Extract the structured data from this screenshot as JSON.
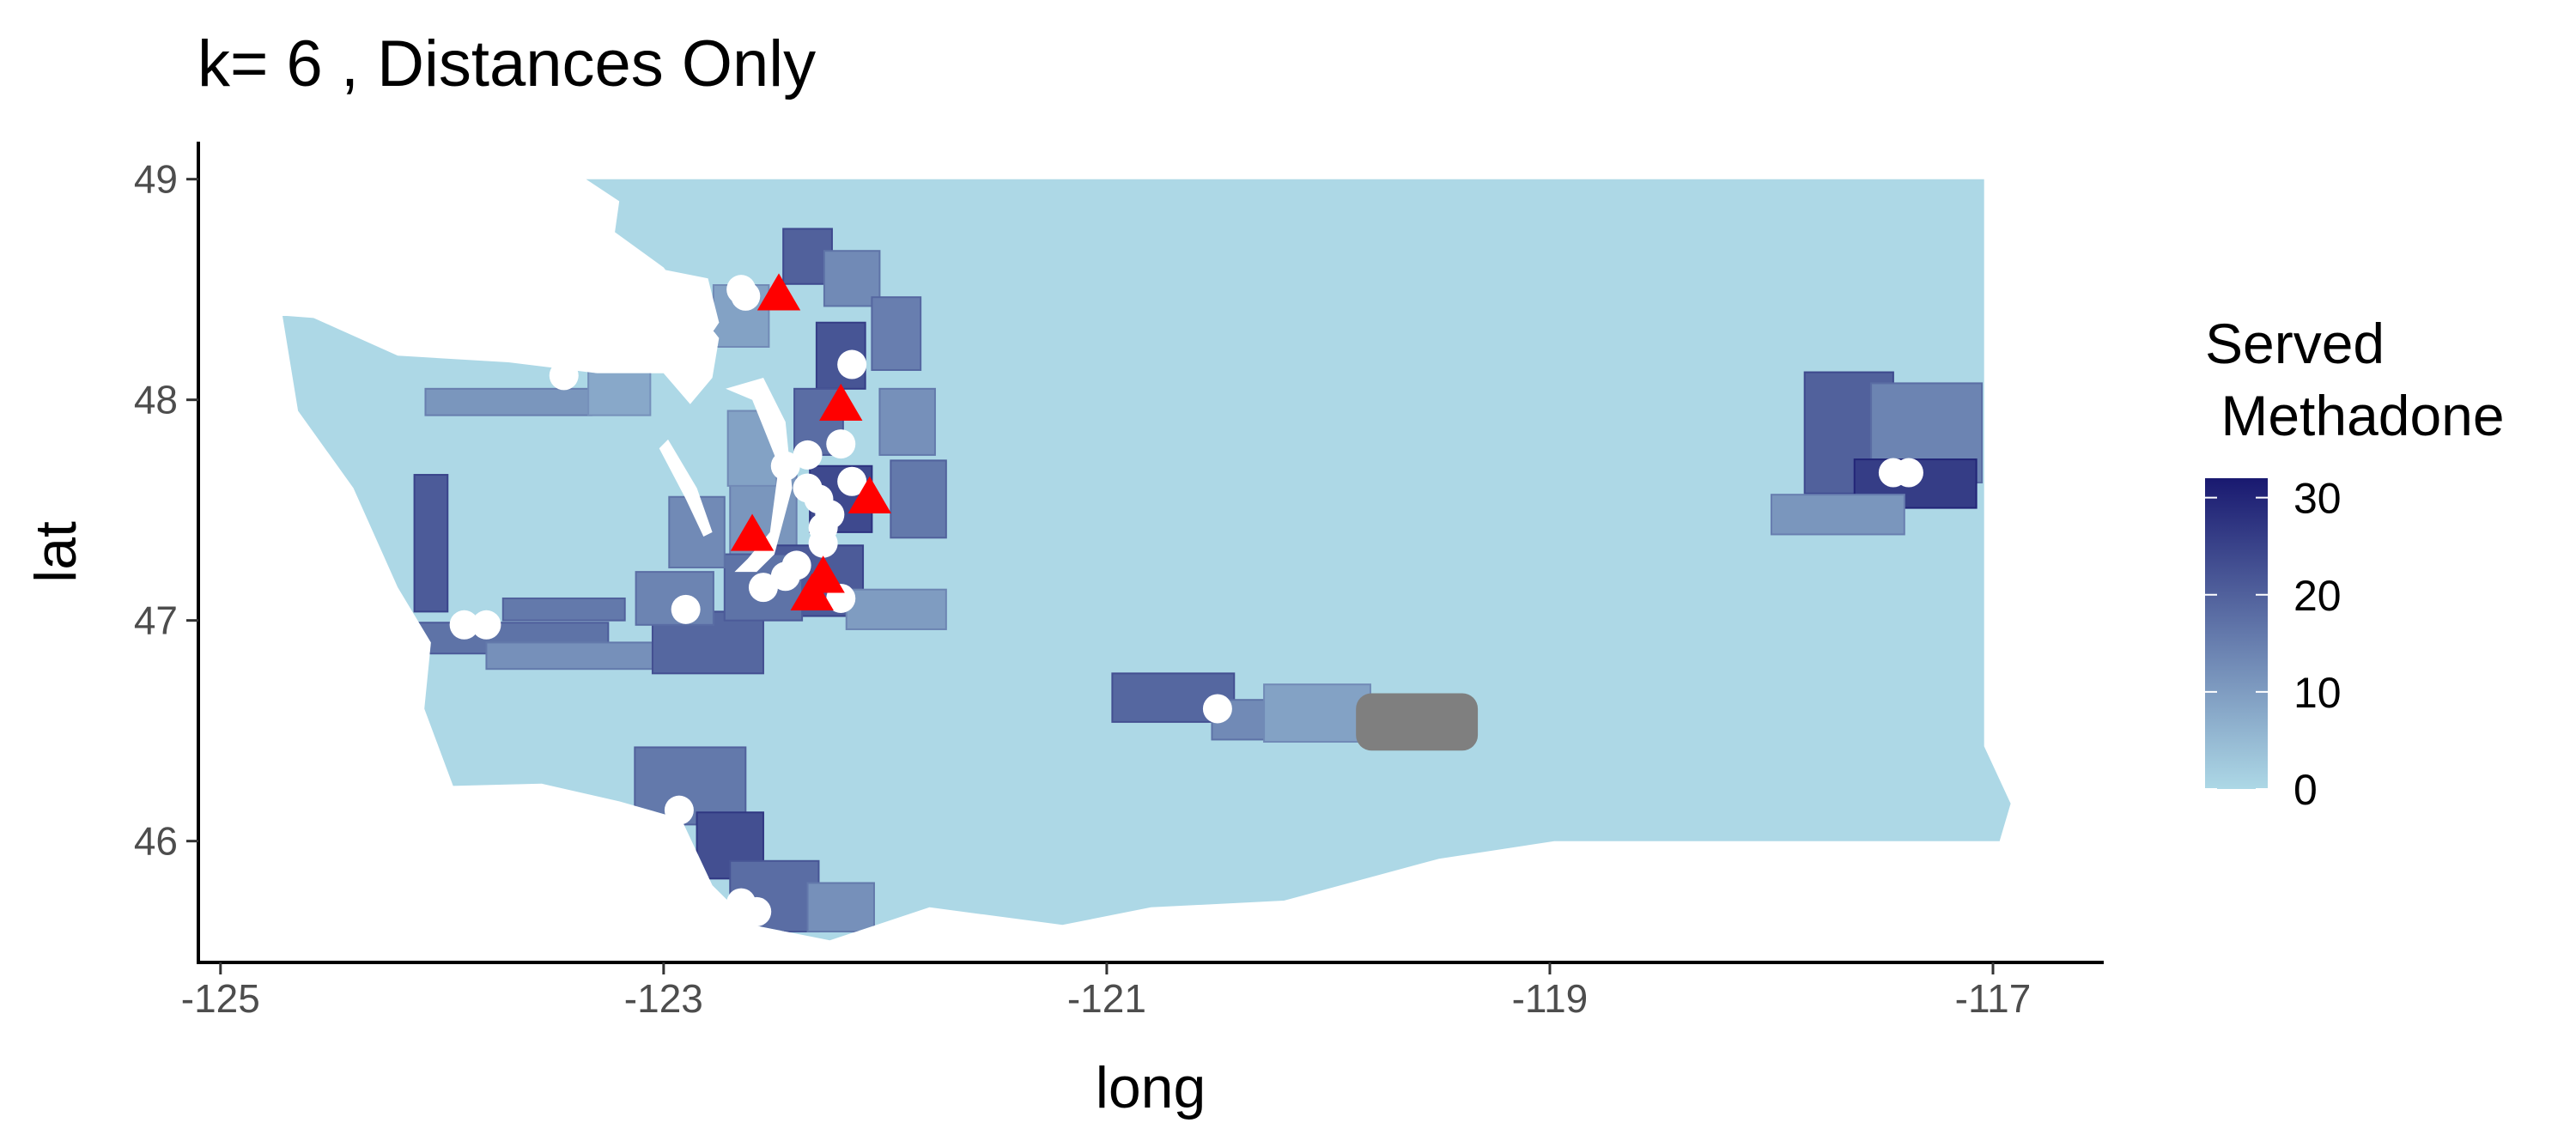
{
  "chart_data": {
    "type": "map",
    "title": "k= 6 , Distances Only",
    "xlabel": "long",
    "ylabel": "lat",
    "xlim": [
      -125.1,
      -116.5
    ],
    "ylim": [
      45.45,
      49.17
    ],
    "x_ticks": [
      -125,
      -123,
      -121,
      -119,
      -117
    ],
    "y_ticks": [
      46,
      47,
      48,
      49
    ],
    "x_tick_labels": [
      "-125",
      "-123",
      "-121",
      "-119",
      "-117"
    ],
    "y_tick_labels": [
      "46",
      "47",
      "48",
      "49"
    ],
    "legend": {
      "title_line1": "Served",
      "title_line2": " Methadone",
      "min": 0,
      "max": 32,
      "breaks": [
        0,
        10,
        20,
        30
      ],
      "break_labels": [
        "0",
        "10",
        "20",
        "30"
      ],
      "low_color": "#add8e6",
      "high_color": "#191970",
      "placement": "right"
    },
    "colors": {
      "base_fill": "#add8e6",
      "na_fill": "#7f7f7f",
      "facility_marker": "#ff0000",
      "client_marker": "#ffffff"
    },
    "shaded_regions": [
      {
        "lon": -124.05,
        "lat": 47.35,
        "w": 0.15,
        "h": 0.62,
        "value": 21
      },
      {
        "lon": -123.7,
        "lat": 46.92,
        "w": 0.9,
        "h": 0.14,
        "value": 17
      },
      {
        "lon": -123.2,
        "lat": 46.84,
        "w": 1.2,
        "h": 0.12,
        "value": 12
      },
      {
        "lon": -122.8,
        "lat": 46.9,
        "w": 0.5,
        "h": 0.28,
        "value": 19
      },
      {
        "lon": -122.95,
        "lat": 47.1,
        "w": 0.35,
        "h": 0.24,
        "value": 14
      },
      {
        "lon": -123.45,
        "lat": 47.05,
        "w": 0.55,
        "h": 0.1,
        "value": 16
      },
      {
        "lon": -123.7,
        "lat": 47.99,
        "w": 0.75,
        "h": 0.12,
        "value": 11
      },
      {
        "lon": -123.2,
        "lat": 48.03,
        "w": 0.28,
        "h": 0.2,
        "value": 8
      },
      {
        "lon": -122.65,
        "lat": 48.38,
        "w": 0.25,
        "h": 0.28,
        "value": 9
      },
      {
        "lon": -122.35,
        "lat": 48.65,
        "w": 0.22,
        "h": 0.25,
        "value": 20
      },
      {
        "lon": -122.15,
        "lat": 48.55,
        "w": 0.25,
        "h": 0.25,
        "value": 13
      },
      {
        "lon": -122.2,
        "lat": 48.2,
        "w": 0.22,
        "h": 0.3,
        "value": 22
      },
      {
        "lon": -121.95,
        "lat": 48.3,
        "w": 0.22,
        "h": 0.33,
        "value": 15
      },
      {
        "lon": -122.3,
        "lat": 47.9,
        "w": 0.22,
        "h": 0.3,
        "value": 18
      },
      {
        "lon": -121.9,
        "lat": 47.9,
        "w": 0.25,
        "h": 0.3,
        "value": 12
      },
      {
        "lon": -122.2,
        "lat": 47.55,
        "w": 0.28,
        "h": 0.3,
        "value": 24
      },
      {
        "lon": -121.85,
        "lat": 47.55,
        "w": 0.25,
        "h": 0.35,
        "value": 16
      },
      {
        "lon": -122.55,
        "lat": 47.48,
        "w": 0.3,
        "h": 0.42,
        "value": 11
      },
      {
        "lon": -122.3,
        "lat": 47.18,
        "w": 0.4,
        "h": 0.32,
        "value": 21
      },
      {
        "lon": -122.55,
        "lat": 47.15,
        "w": 0.35,
        "h": 0.3,
        "value": 17
      },
      {
        "lon": -121.95,
        "lat": 47.05,
        "w": 0.45,
        "h": 0.18,
        "value": 10
      },
      {
        "lon": -122.85,
        "lat": 47.4,
        "w": 0.25,
        "h": 0.32,
        "value": 13
      },
      {
        "lon": -122.6,
        "lat": 47.78,
        "w": 0.22,
        "h": 0.34,
        "value": 9
      },
      {
        "lon": -122.88,
        "lat": 46.25,
        "w": 0.5,
        "h": 0.35,
        "value": 16
      },
      {
        "lon": -122.7,
        "lat": 45.98,
        "w": 0.3,
        "h": 0.3,
        "value": 23
      },
      {
        "lon": -122.5,
        "lat": 45.75,
        "w": 0.4,
        "h": 0.32,
        "value": 18
      },
      {
        "lon": -122.2,
        "lat": 45.7,
        "w": 0.3,
        "h": 0.22,
        "value": 12
      },
      {
        "lon": -120.7,
        "lat": 46.65,
        "w": 0.55,
        "h": 0.22,
        "value": 19
      },
      {
        "lon": -120.3,
        "lat": 46.55,
        "w": 0.45,
        "h": 0.18,
        "value": 13
      },
      {
        "lon": -120.05,
        "lat": 46.58,
        "w": 0.48,
        "h": 0.26,
        "value": 9
      },
      {
        "lon": -117.65,
        "lat": 47.85,
        "w": 0.4,
        "h": 0.55,
        "value": 20
      },
      {
        "lon": -117.3,
        "lat": 47.85,
        "w": 0.5,
        "h": 0.45,
        "value": 14
      },
      {
        "lon": -117.35,
        "lat": 47.62,
        "w": 0.55,
        "h": 0.22,
        "value": 26
      },
      {
        "lon": -117.7,
        "lat": 47.48,
        "w": 0.6,
        "h": 0.18,
        "value": 11
      }
    ],
    "missing_regions": [
      {
        "lon": -119.6,
        "lat": 46.54,
        "w": 0.55,
        "h": 0.26
      }
    ],
    "client_points": [
      [
        -122.65,
        48.5
      ],
      [
        -122.63,
        48.47
      ],
      [
        -122.15,
        48.16
      ],
      [
        -123.45,
        48.11
      ],
      [
        -122.2,
        47.8
      ],
      [
        -122.35,
        47.75
      ],
      [
        -122.45,
        47.7
      ],
      [
        -122.15,
        47.63
      ],
      [
        -122.35,
        47.6
      ],
      [
        -122.3,
        47.55
      ],
      [
        -122.25,
        47.48
      ],
      [
        -122.28,
        47.42
      ],
      [
        -122.28,
        47.35
      ],
      [
        -122.4,
        47.25
      ],
      [
        -122.45,
        47.2
      ],
      [
        -122.55,
        47.15
      ],
      [
        -122.2,
        47.1
      ],
      [
        -122.9,
        47.05
      ],
      [
        -123.8,
        46.98
      ],
      [
        -123.9,
        46.98
      ],
      [
        -122.93,
        46.14
      ],
      [
        -122.65,
        45.72
      ],
      [
        -122.58,
        45.68
      ],
      [
        -120.5,
        46.6
      ],
      [
        -117.45,
        47.67
      ],
      [
        -117.38,
        47.67
      ]
    ],
    "facility_points": [
      [
        -122.48,
        48.48
      ],
      [
        -122.2,
        47.98
      ],
      [
        -122.07,
        47.56
      ],
      [
        -122.6,
        47.39
      ],
      [
        -122.28,
        47.2
      ],
      [
        -122.33,
        47.12
      ]
    ]
  }
}
